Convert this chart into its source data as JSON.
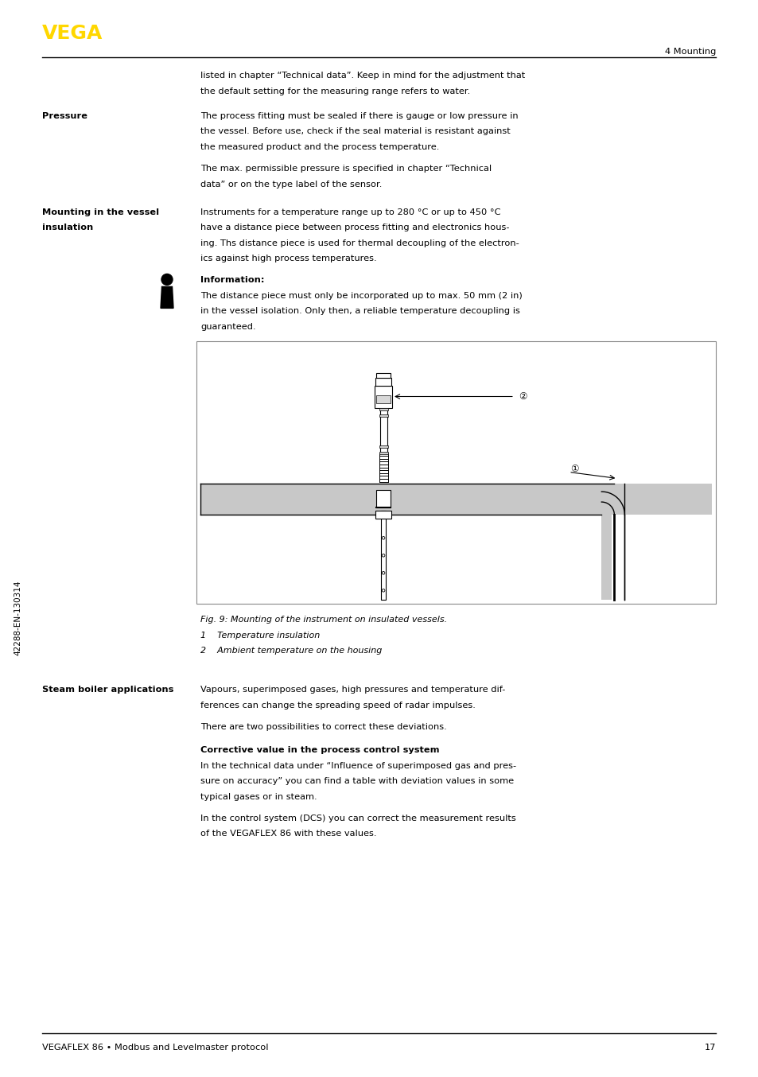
{
  "page_width": 9.54,
  "page_height": 13.54,
  "bg_color": "#ffffff",
  "vega_color": "#FFD700",
  "section_header": "4 Mounting",
  "footer_text": "VEGAFLEX 86 • Modbus and Levelmaster protocol",
  "footer_page": "17",
  "side_text": "42288-EN-130314",
  "para_intro_1": "listed in chapter “Technical data”. Keep in mind for the adjustment that",
  "para_intro_2": "the default setting for the measuring range refers to water.",
  "label_pressure": "Pressure",
  "pressure_1": "The process fitting must be sealed if there is gauge or low pressure in",
  "pressure_2": "the vessel. Before use, check if the seal material is resistant against",
  "pressure_3": "the measured product and the process temperature.",
  "pressure_4": "The max. permissible pressure is specified in chapter “Technical",
  "pressure_5": "data” or on the type label of the sensor.",
  "label_mounting": "Mounting in the vessel",
  "label_mounting2": "insulation",
  "mounting_1": "Instruments for a temperature range up to 280 °C or up to 450 °C",
  "mounting_2": "have a distance piece between process fitting and electronics hous-",
  "mounting_3": "ing. Ths distance piece is used for thermal decoupling of the electron-",
  "mounting_4": "ics against high process temperatures.",
  "info_title": "Information:",
  "info_1": "The distance piece must only be incorporated up to max. 50 mm (2 in)",
  "info_2": "in the vessel isolation. Only then, a reliable temperature decoupling is",
  "info_3": "guaranteed.",
  "fig_caption": "Fig. 9: Mounting of the instrument on insulated vessels.",
  "fig_label1": "1    Temperature insulation",
  "fig_label2": "2    Ambient temperature on the housing",
  "label_steam": "Steam boiler applications",
  "steam_1": "Vapours, superimposed gases, high pressures and temperature dif-",
  "steam_2": "ferences can change the spreading speed of radar impulses.",
  "steam_3": "There are two possibilities to correct these deviations.",
  "corr_title": "Corrective value in the process control system",
  "corr_1": "In the technical data under “Influence of superimposed gas and pres-",
  "corr_2": "sure on accuracy” you can find a table with deviation values in some",
  "corr_3": "typical gases or in steam.",
  "corr_4": "In the control system (DCS) you can correct the measurement results",
  "corr_5": "of the VEGAFLEX 86 with these values.",
  "insulation_color": "#c8c8c8",
  "vessel_dark": "#888888",
  "diagram_border": "#888888"
}
